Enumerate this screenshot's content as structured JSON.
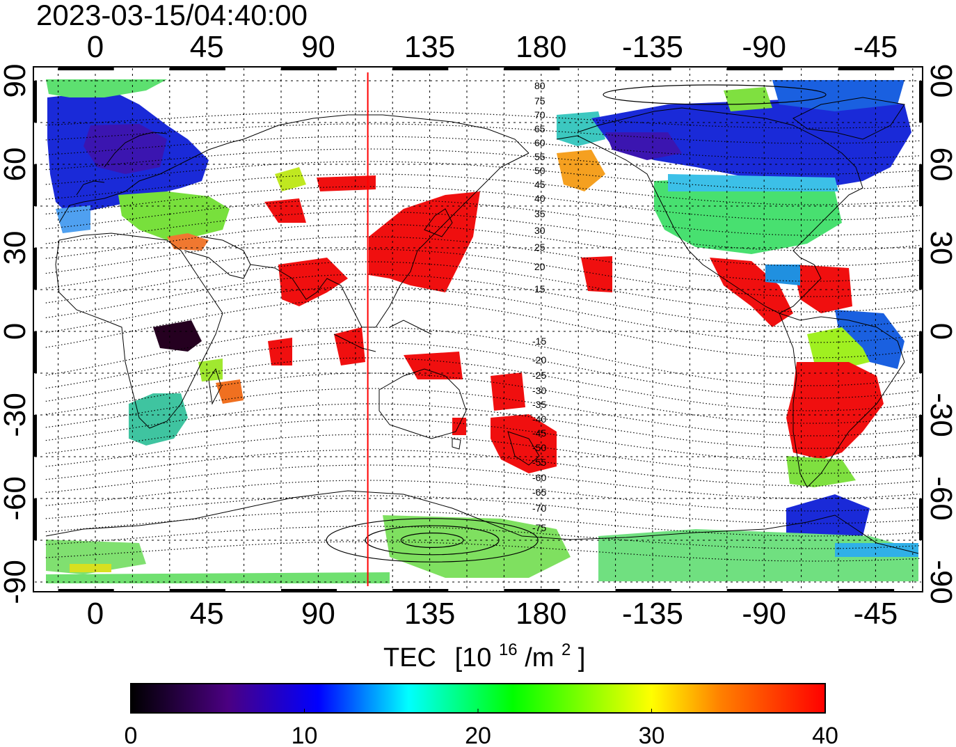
{
  "title": "2023-03-15/04:40:00",
  "map": {
    "lon_ticks": [
      "0",
      "45",
      "90",
      "135",
      "180",
      "-135",
      "-90",
      "-45"
    ],
    "lat_ticks": [
      "90",
      "60",
      "30",
      "0",
      "-30",
      "-60",
      "-90"
    ],
    "lon_range": [
      -20,
      335
    ],
    "lat_range": [
      -92,
      92
    ],
    "grid": true,
    "marker_longitude": 110,
    "marker_color": "#ff0000"
  },
  "contours": {
    "north_labels": [
      "80",
      "75",
      "70",
      "65",
      "60",
      "55",
      "50",
      "45",
      "40",
      "35",
      "30",
      "25",
      "20",
      "15"
    ],
    "south_labels": [
      "-15",
      "-20",
      "-25",
      "-30",
      "-35",
      "-40",
      "-45",
      "-50",
      "-55",
      "-60",
      "-65",
      "-70",
      "-75"
    ]
  },
  "colorbar": {
    "label_main": "TEC",
    "label_unit_prefix": "[10",
    "label_unit_exp": "16",
    "label_unit_mid": "/m",
    "label_unit_exp2": "2",
    "label_unit_suffix": "]",
    "ticks": [
      "0",
      "10",
      "20",
      "30",
      "40"
    ],
    "min": 0,
    "max": 40,
    "stops": [
      "#000000",
      "#4b0082",
      "#0000ff",
      "#00ffff",
      "#00ff00",
      "#ffff00",
      "#ff7f00",
      "#ff0000"
    ]
  }
}
